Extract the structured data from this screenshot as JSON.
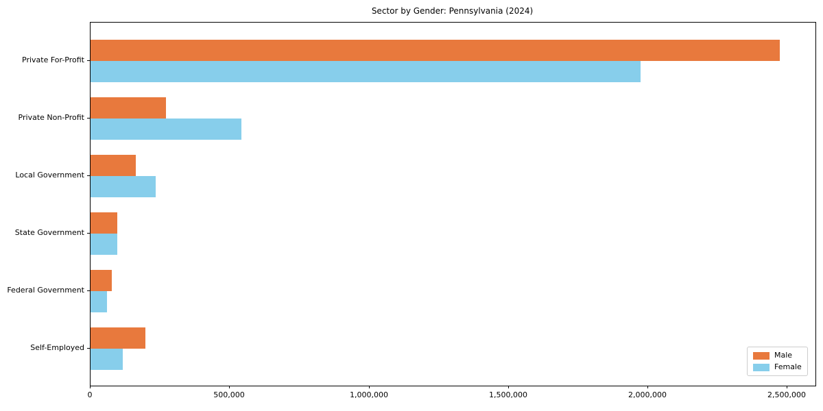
{
  "chart_data": {
    "type": "bar",
    "orientation": "horizontal",
    "title": "Sector by Gender: Pennsylvania (2024)",
    "categories": [
      "Private For-Profit",
      "Private Non-Profit",
      "Local Government",
      "State Government",
      "Federal Government",
      "Self-Employed"
    ],
    "series": [
      {
        "name": "Male",
        "color": "#e8793d",
        "values": [
          2473000,
          270000,
          162000,
          96000,
          76000,
          197000
        ]
      },
      {
        "name": "Female",
        "color": "#87ceeb",
        "values": [
          1973000,
          540000,
          234000,
          95000,
          59000,
          115000
        ]
      }
    ],
    "xlabel": "",
    "ylabel": "",
    "xlim": [
      0,
      2600000
    ],
    "x_ticks": [
      0,
      500000,
      1000000,
      1500000,
      2000000,
      2500000
    ],
    "x_tick_labels": [
      "0",
      "500,000",
      "1,000,000",
      "1,500,000",
      "2,000,000",
      "2,500,000"
    ],
    "grid": false,
    "legend": {
      "position": "lower right",
      "entries": [
        "Male",
        "Female"
      ]
    }
  }
}
